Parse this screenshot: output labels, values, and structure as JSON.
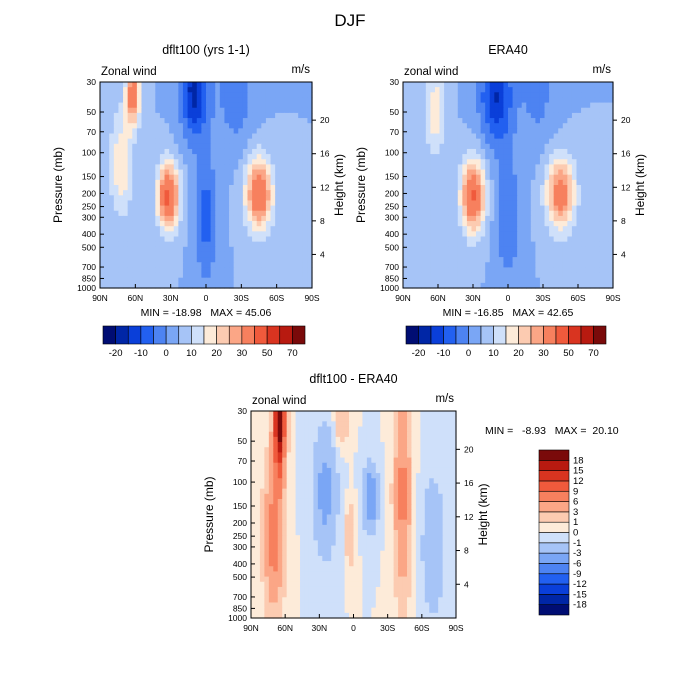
{
  "page_title": "DJF",
  "colors": {
    "neg": [
      "#000d73",
      "#0026a6",
      "#0a3fd9",
      "#2260f0",
      "#4d83f2",
      "#7aa6f5",
      "#a6c4f7",
      "#cfe0fa"
    ],
    "pos": [
      "#fdebd9",
      "#fccbb1",
      "#fba686",
      "#f7805e",
      "#f05a3c",
      "#d93420",
      "#b81a10",
      "#7a0a0a"
    ]
  },
  "chart_data": [
    {
      "type": "heatmap",
      "title": "dflt100 (yrs 1-1)",
      "field_label": "Zonal wind",
      "units": "m/s",
      "ylabel": "Pressure (mb)",
      "ylabel_right": "Height (km)",
      "x_ticks": [
        "90N",
        "60N",
        "30N",
        "0",
        "30S",
        "60S",
        "90S"
      ],
      "x_range": [
        90,
        -90
      ],
      "y_ticks": [
        "30",
        "50",
        "70",
        "100",
        "150",
        "200",
        "250",
        "300",
        "400",
        "500",
        "700",
        "850",
        "1000"
      ],
      "y_range": [
        30,
        1000
      ],
      "y_scale": "log",
      "right_ticks": [
        "20",
        "16",
        "12",
        "8",
        "4"
      ],
      "min_max_text": "MIN = -18.98   MAX = 45.06",
      "min": -18.98,
      "max": 45.06,
      "colorbar": {
        "orientation": "horizontal",
        "labels": [
          "-20",
          "-10",
          "0",
          "10",
          "20",
          "30",
          "50",
          "70"
        ],
        "levels": [
          -20,
          -15,
          -10,
          -5,
          0,
          5,
          10,
          15,
          20,
          25,
          30,
          40,
          50,
          60,
          70
        ]
      }
    },
    {
      "type": "heatmap",
      "title": "ERA40",
      "field_label": "zonal wind",
      "units": "m/s",
      "ylabel": "Pressure (mb)",
      "ylabel_right": "Height (km)",
      "x_ticks": [
        "90N",
        "60N",
        "30N",
        "0",
        "30S",
        "60S",
        "90S"
      ],
      "x_range": [
        90,
        -90
      ],
      "y_ticks": [
        "30",
        "50",
        "70",
        "100",
        "150",
        "200",
        "250",
        "300",
        "400",
        "500",
        "700",
        "850",
        "1000"
      ],
      "y_range": [
        30,
        1000
      ],
      "y_scale": "log",
      "right_ticks": [
        "20",
        "16",
        "12",
        "8",
        "4"
      ],
      "min_max_text": "MIN = -16.85   MAX = 42.65",
      "min": -16.85,
      "max": 42.65,
      "colorbar": {
        "orientation": "horizontal",
        "labels": [
          "-20",
          "-10",
          "0",
          "10",
          "20",
          "30",
          "50",
          "70"
        ],
        "levels": [
          -20,
          -15,
          -10,
          -5,
          0,
          5,
          10,
          15,
          20,
          25,
          30,
          40,
          50,
          60,
          70
        ]
      }
    },
    {
      "type": "heatmap",
      "title": "dflt100 - ERA40",
      "field_label": "zonal wind",
      "units": "m/s",
      "ylabel": "Pressure (mb)",
      "ylabel_right": "Height (km)",
      "x_ticks": [
        "90N",
        "60N",
        "30N",
        "0",
        "30S",
        "60S",
        "90S"
      ],
      "x_range": [
        90,
        -90
      ],
      "y_ticks": [
        "30",
        "50",
        "70",
        "100",
        "150",
        "200",
        "250",
        "300",
        "400",
        "500",
        "700",
        "850",
        "1000"
      ],
      "y_range": [
        30,
        1000
      ],
      "y_scale": "log",
      "right_ticks": [
        "20",
        "16",
        "12",
        "8",
        "4"
      ],
      "min_max_text": "MIN =   -8.93   MAX =  20.10",
      "min": -8.93,
      "max": 20.1,
      "colorbar": {
        "orientation": "vertical",
        "labels": [
          "18",
          "15",
          "12",
          "9",
          "6",
          "3",
          "1",
          "0",
          "-1",
          "-3",
          "-6",
          "-9",
          "-12",
          "-15",
          "-18"
        ],
        "levels": [
          -18,
          -15,
          -12,
          -9,
          -6,
          -3,
          -1,
          0,
          1,
          3,
          6,
          9,
          12,
          15,
          18
        ]
      }
    }
  ]
}
